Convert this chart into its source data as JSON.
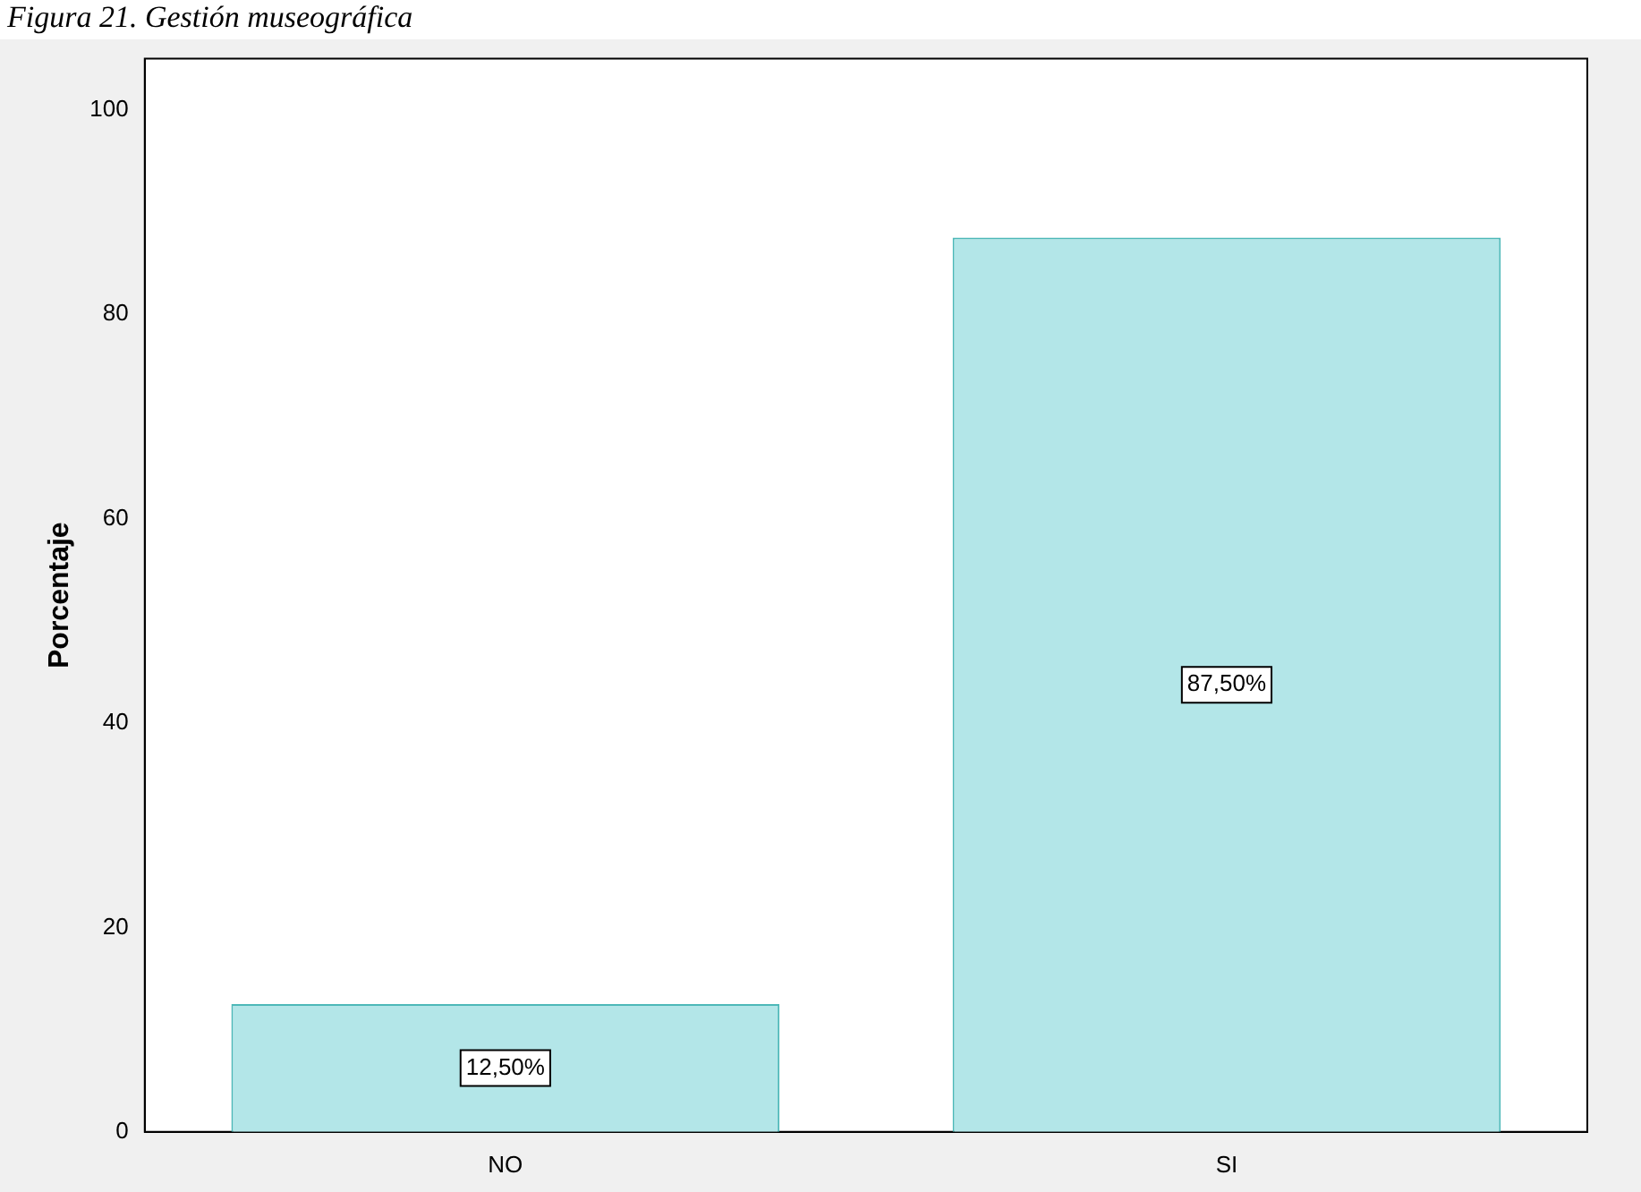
{
  "chart_data": {
    "type": "bar",
    "title": "Figura 21. Gestión museográfica",
    "ylabel": "Porcentaje",
    "categories": [
      "NO",
      "SI"
    ],
    "values": [
      12.5,
      87.5
    ],
    "value_labels": [
      "12,50%",
      "87,50%"
    ],
    "color": "#b3e6e8",
    "ylim": [
      0,
      105
    ],
    "yticks": [
      0,
      20,
      40,
      60,
      80,
      100
    ],
    "grid": false,
    "legend": false
  }
}
